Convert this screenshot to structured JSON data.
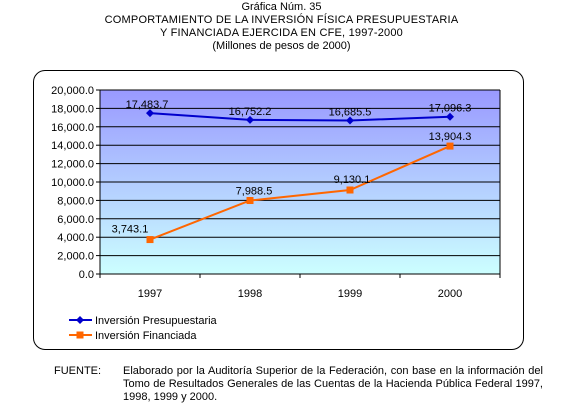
{
  "header": {
    "line1": "Gráfica Núm. 35",
    "line2": "COMPORTAMIENTO DE LA INVERSIÓN FÍSICA PRESUPUESTARIA",
    "line3": "Y FINANCIADA EJERCIDA EN CFE, 1997-2000",
    "line4": "(Millones de pesos de 2000)"
  },
  "chart_data": {
    "type": "line",
    "categories": [
      "1997",
      "1998",
      "1999",
      "2000"
    ],
    "series": [
      {
        "name": "Inversión Presupuestaria",
        "values": [
          17483.7,
          16752.2,
          16685.5,
          17096.3
        ],
        "labels": [
          "17,483.7",
          "16,752.2",
          "16,685.5",
          "17,096.3"
        ],
        "color": "#0000cc",
        "marker": "diamond"
      },
      {
        "name": "Inversión Financiada",
        "values": [
          3743.1,
          7988.5,
          9130.1,
          13904.3
        ],
        "labels": [
          "3,743.1",
          "7,988.5",
          "9,130.1",
          "13,904.3"
        ],
        "color": "#ff6600",
        "marker": "square"
      }
    ],
    "ylim": [
      0,
      20000
    ],
    "yticks": [
      0,
      2000,
      4000,
      6000,
      8000,
      10000,
      12000,
      14000,
      16000,
      18000,
      20000
    ],
    "ytick_labels": [
      "0.0",
      "2,000.0",
      "4,000.0",
      "6,000.0",
      "8,000.0",
      "10,000.0",
      "12,000.0",
      "14,000.0",
      "16,000.0",
      "18,000.0",
      "20,000.0"
    ],
    "grid": true,
    "legend": "bottom-left",
    "background_gradient": [
      "#9999ff",
      "#ccffff"
    ]
  },
  "source": {
    "label": "FUENTE:",
    "text": "Elaborado por la Auditoría Superior de la Federación, con base en la información del Tomo de Resultados Generales de las Cuentas de la Hacienda Pública Federal 1997, 1998, 1999 y 2000."
  }
}
